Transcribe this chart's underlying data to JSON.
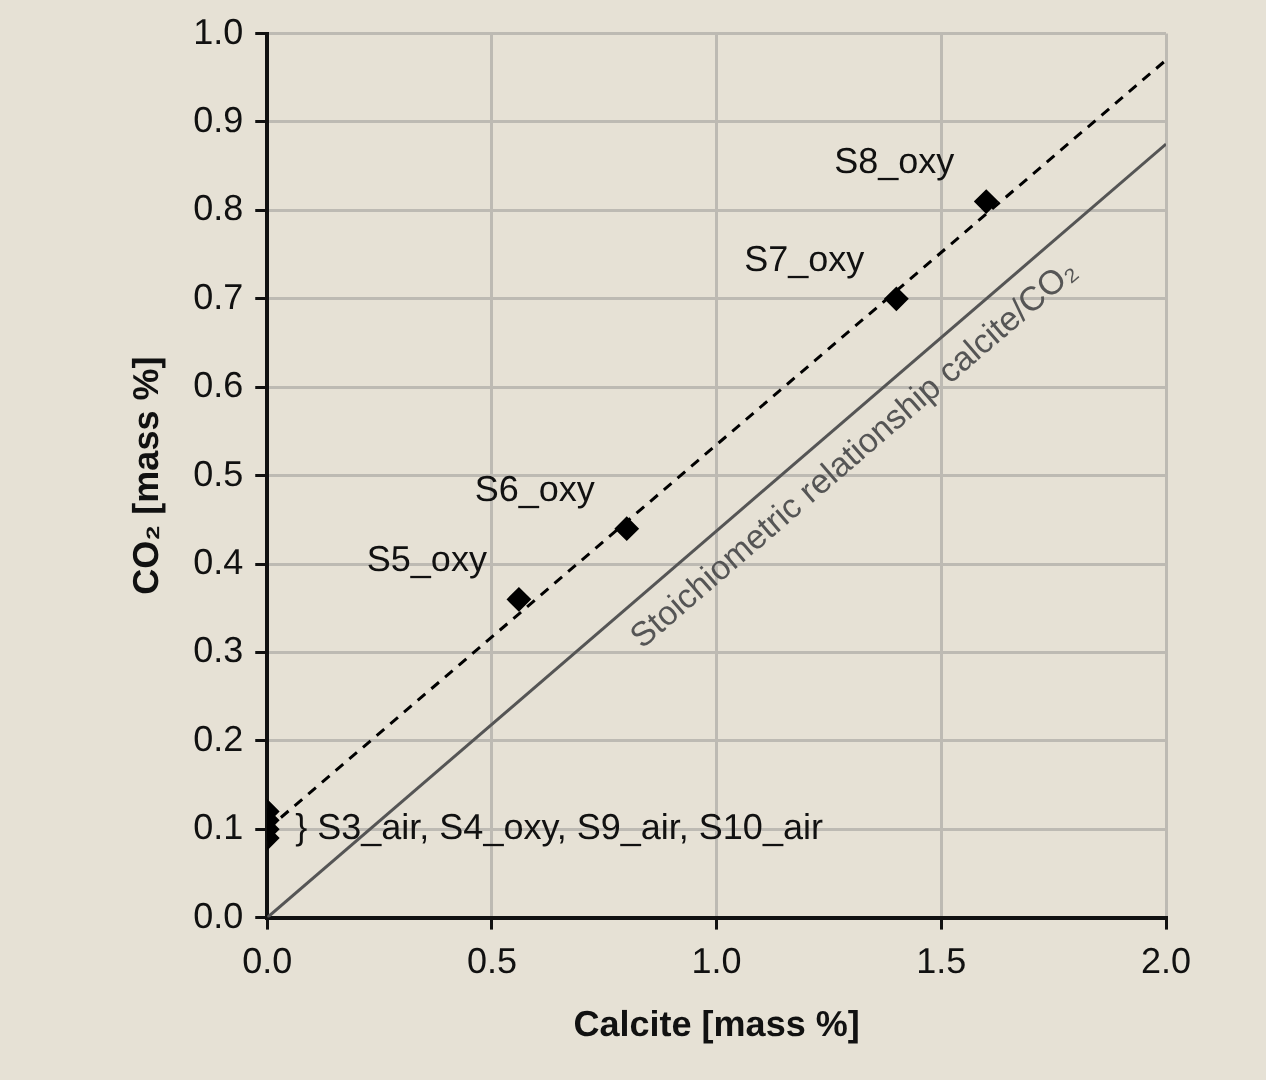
{
  "chart_data": {
    "type": "scatter",
    "xlabel": "Calcite [mass %]",
    "ylabel": "CO₂ [mass %]",
    "xlim": [
      0,
      2
    ],
    "xticks": [
      {
        "value": 0,
        "label": "0.0"
      },
      {
        "value": 0.5,
        "label": "0.5"
      },
      {
        "value": 1,
        "label": "1.0"
      },
      {
        "value": 1.5,
        "label": "1.5"
      },
      {
        "value": 2,
        "label": "2.0"
      }
    ],
    "ylim": [
      0,
      1
    ],
    "yticks": [
      {
        "value": 0,
        "label": "0.0"
      },
      {
        "value": 0.1,
        "label": "0.1"
      },
      {
        "value": 0.2,
        "label": "0.2"
      },
      {
        "value": 0.3,
        "label": "0.3"
      },
      {
        "value": 0.4,
        "label": "0.4"
      },
      {
        "value": 0.5,
        "label": "0.5"
      },
      {
        "value": 0.6,
        "label": "0.6"
      },
      {
        "value": 0.7,
        "label": "0.7"
      },
      {
        "value": 0.8,
        "label": "0.8"
      },
      {
        "value": 0.9,
        "label": "0.9"
      },
      {
        "value": 1,
        "label": "1.0"
      }
    ],
    "grid": true,
    "legend": false,
    "series": [
      {
        "marker": "diamond",
        "color": "#000000",
        "x": [
          0,
          0,
          0,
          0,
          0.56,
          0.8,
          1.4,
          1.6
        ],
        "values": [
          0.12,
          0.11,
          0.1,
          0.09,
          0.36,
          0.44,
          0.7,
          0.81
        ]
      },
      {
        "type": "line",
        "color": "#000000",
        "line_style": "dashed",
        "x": [
          0,
          2
        ],
        "values": [
          0.1,
          0.97
        ]
      },
      {
        "type": "line",
        "color": "#555555",
        "line_style": "solid",
        "x": [
          0,
          2
        ],
        "values": [
          0,
          0.875
        ]
      }
    ],
    "annotations": [
      {
        "text": "S5_oxy",
        "x": 0.56,
        "y": 0.36
      },
      {
        "text": "S6_oxy",
        "x": 0.8,
        "y": 0.44
      },
      {
        "text": "S7_oxy",
        "x": 1.4,
        "y": 0.7
      },
      {
        "text": "S8_oxy",
        "x": 1.6,
        "y": 0.81
      },
      {
        "text": "} S3_air, S4_oxy, S9_air, S10_air",
        "x": 0,
        "y": 0.1
      },
      "Stoichiometric relationship calcite/CO₂"
    ]
  }
}
